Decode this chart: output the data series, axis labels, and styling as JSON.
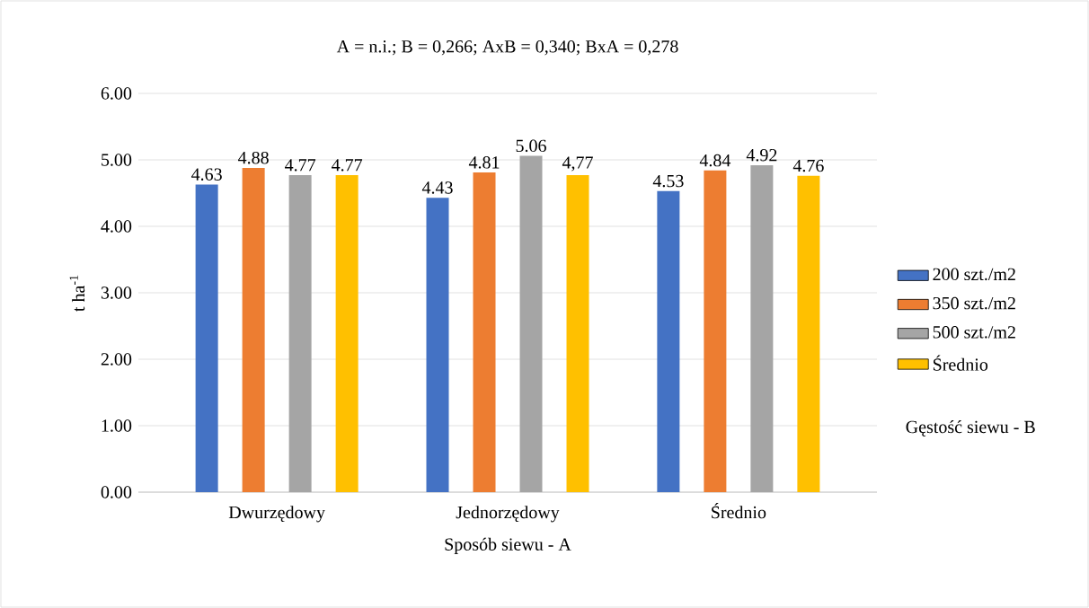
{
  "chart_data": {
    "type": "bar",
    "annotations": [
      "A = n.i.;  B = 0,266;   AxB = 0,340;   BxA = 0,278"
    ],
    "xlabel": "Sposób siewu - A",
    "ylabel": "t ha$^{-1}$",
    "legend_title": "Gęstość siewu - B",
    "categories": [
      "Dwurzędowy",
      "Jednorzędowy",
      "Średnio"
    ],
    "series": [
      {
        "name": "200 szt./m2",
        "color": "#4472c4",
        "values": [
          4.63,
          4.43,
          4.53
        ],
        "value_labels": [
          "4.63",
          "4.43",
          "4.53"
        ]
      },
      {
        "name": "350 szt./m2",
        "color": "#ed7d31",
        "values": [
          4.88,
          4.81,
          4.84
        ],
        "value_labels": [
          "4.88",
          "4.81",
          "4.84"
        ]
      },
      {
        "name": "500 szt./m2",
        "color": "#a5a5a5",
        "values": [
          4.77,
          5.06,
          4.92
        ],
        "value_labels": [
          "4.77",
          "5.06",
          "4.92"
        ]
      },
      {
        "name": "Średnio",
        "color": "#ffc000",
        "values": [
          4.77,
          4.77,
          4.76
        ],
        "value_labels": [
          "4.77",
          "4,77",
          "4.76"
        ]
      }
    ],
    "ylim": [
      0,
      6
    ],
    "yticks": [
      {
        "value": 0,
        "label": "0.00"
      },
      {
        "value": 1,
        "label": "1.00"
      },
      {
        "value": 2,
        "label": "2.00"
      },
      {
        "value": 3,
        "label": "3.00"
      },
      {
        "value": 4,
        "label": "4.00"
      },
      {
        "value": 5,
        "label": "5.00"
      },
      {
        "value": 6,
        "label": "6.00"
      }
    ],
    "grid": "y",
    "legend": "right"
  }
}
